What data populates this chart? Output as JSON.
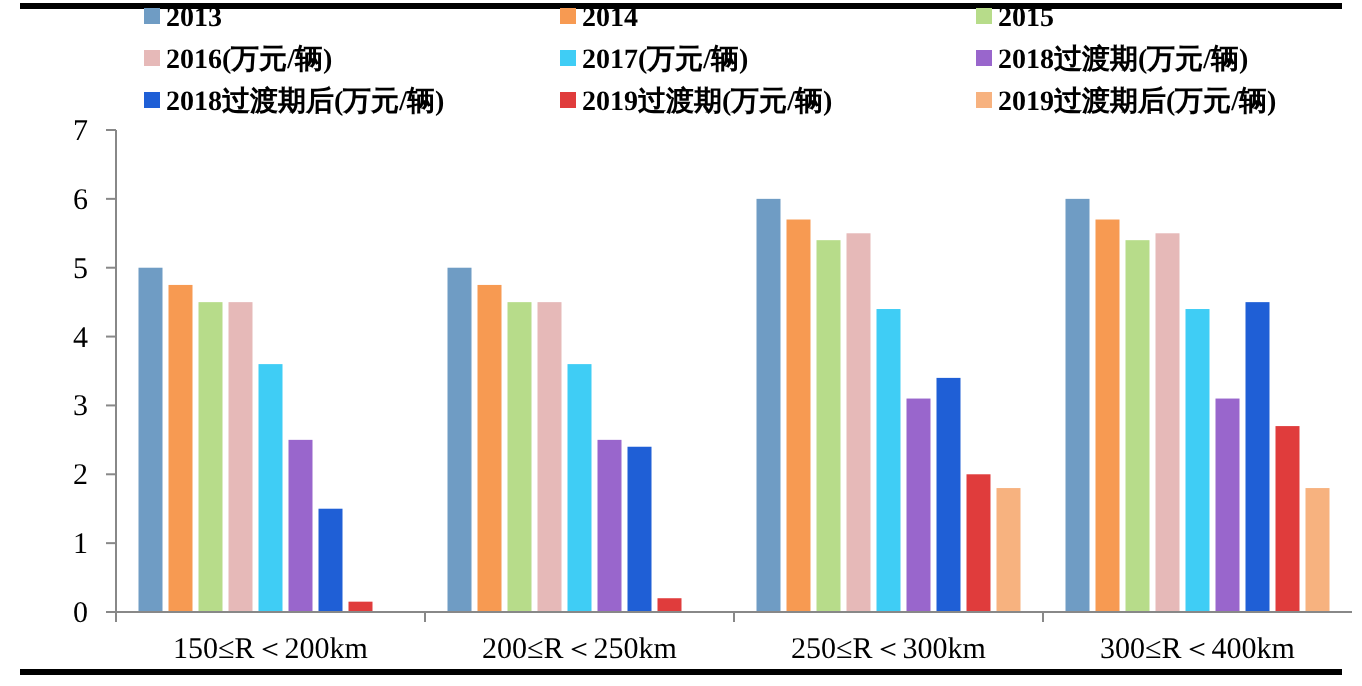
{
  "chart_data": {
    "type": "bar",
    "categories": [
      "150≤R＜200km",
      "200≤R＜250km",
      "250≤R＜300km",
      "300≤R＜400km"
    ],
    "series": [
      {
        "name": "2013",
        "color": "#6f9cc4",
        "values": [
          5,
          5,
          6,
          6
        ]
      },
      {
        "name": "2014",
        "color": "#f79a52",
        "values": [
          4.75,
          4.75,
          5.7,
          5.7
        ]
      },
      {
        "name": "2015",
        "color": "#b7dc8a",
        "values": [
          4.5,
          4.5,
          5.4,
          5.4
        ]
      },
      {
        "name": "2016(万元/辆)",
        "color": "#e6b9b8",
        "values": [
          4.5,
          4.5,
          5.5,
          5.5
        ]
      },
      {
        "name": "2017(万元/辆)",
        "color": "#3fcdf5",
        "values": [
          3.6,
          3.6,
          4.4,
          4.4
        ]
      },
      {
        "name": "2018过渡期(万元/辆)",
        "color": "#9966cc",
        "values": [
          2.5,
          2.5,
          3.1,
          3.1
        ]
      },
      {
        "name": "2018过渡期后(万元/辆)",
        "color": "#1f5fd6",
        "values": [
          1.5,
          2.4,
          3.4,
          4.5
        ]
      },
      {
        "name": "2019过渡期(万元/辆)",
        "color": "#e03c3c",
        "values": [
          0.15,
          0.2,
          2.0,
          2.7
        ]
      },
      {
        "name": "2019过渡期后(万元/辆)",
        "color": "#f7b27f",
        "values": [
          null,
          null,
          1.8,
          1.8
        ]
      }
    ],
    "ylim": [
      0,
      7
    ],
    "yticks": [
      0,
      1,
      2,
      3,
      4,
      5,
      6,
      7
    ],
    "grid": false,
    "legend": "top"
  }
}
